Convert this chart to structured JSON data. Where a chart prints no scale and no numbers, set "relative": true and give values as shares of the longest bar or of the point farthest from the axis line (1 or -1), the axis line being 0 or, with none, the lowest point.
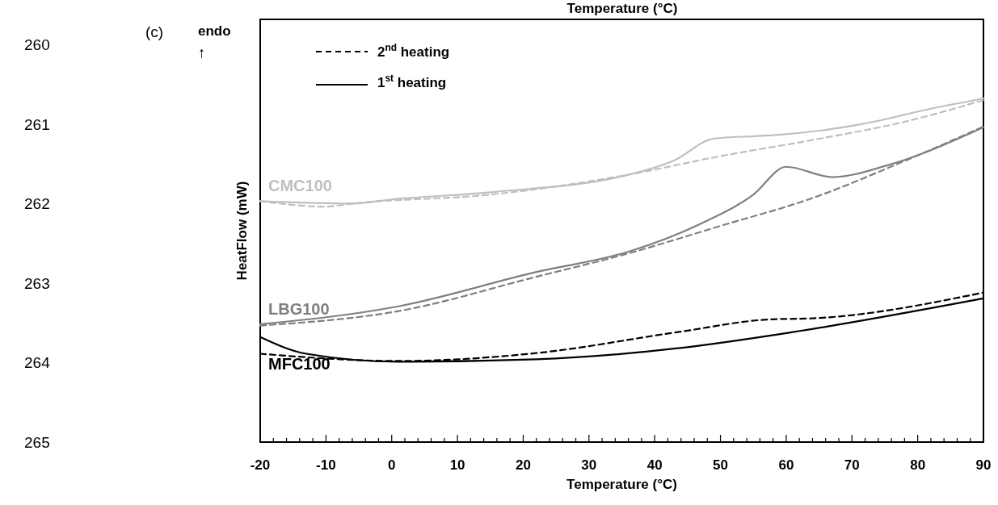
{
  "chart_data": {
    "type": "line",
    "relative": true,
    "xlabel": "Temperature (°C)",
    "ylabel": "HeatFlow (mW)",
    "xlim": [
      -20,
      90
    ],
    "xticks": [
      -20,
      {
        "value": -18,
        "label": null
      },
      {
        "value": -16,
        "label": null
      },
      {
        "value": -14,
        "label": null
      },
      {
        "value": -12,
        "label": null
      },
      -10,
      {
        "value": -8,
        "label": null
      },
      {
        "value": -6,
        "label": null
      },
      {
        "value": -4,
        "label": null
      },
      {
        "value": -2,
        "label": null
      },
      0,
      {
        "value": 2,
        "label": null
      },
      {
        "value": 4,
        "label": null
      },
      {
        "value": 6,
        "label": null
      },
      {
        "value": 8,
        "label": null
      },
      10,
      {
        "value": 12,
        "label": null
      },
      {
        "value": 14,
        "label": null
      },
      {
        "value": 16,
        "label": null
      },
      {
        "value": 18,
        "label": null
      },
      20,
      {
        "value": 22,
        "label": null
      },
      {
        "value": 24,
        "label": null
      },
      {
        "value": 26,
        "label": null
      },
      {
        "value": 28,
        "label": null
      },
      30,
      {
        "value": 32,
        "label": null
      },
      {
        "value": 34,
        "label": null
      },
      {
        "value": 36,
        "label": null
      },
      {
        "value": 38,
        "label": null
      },
      40,
      {
        "value": 42,
        "label": null
      },
      {
        "value": 44,
        "label": null
      },
      {
        "value": 46,
        "label": null
      },
      {
        "value": 48,
        "label": null
      },
      50,
      {
        "value": 52,
        "label": null
      },
      {
        "value": 54,
        "label": null
      },
      {
        "value": 56,
        "label": null
      },
      {
        "value": 58,
        "label": null
      },
      60,
      {
        "value": 62,
        "label": null
      },
      {
        "value": 64,
        "label": null
      },
      {
        "value": 66,
        "label": null
      },
      {
        "value": 68,
        "label": null
      },
      70,
      {
        "value": 72,
        "label": null
      },
      {
        "value": 74,
        "label": null
      },
      {
        "value": 76,
        "label": null
      },
      {
        "value": 78,
        "label": null
      },
      80,
      {
        "value": 82,
        "label": null
      },
      {
        "value": 84,
        "label": null
      },
      {
        "value": 86,
        "label": null
      },
      {
        "value": 88,
        "label": null
      },
      90
    ],
    "grid": false,
    "series": [
      {
        "name": "CMC100",
        "color": "#bfbfbf",
        "line_style": "solid",
        "x": [
          -20,
          -6,
          0,
          15,
          36,
          43,
          49,
          55,
          58,
          71.5,
          82,
          90
        ],
        "values": [
          0.701,
          0.694,
          0.706,
          0.727,
          0.778,
          0.82,
          0.883,
          0.89,
          0.893,
          0.925,
          0.97,
          1
        ]
      },
      {
        "color": "#bfbfbf",
        "line_style": "dashed",
        "x": [
          -20,
          -10,
          -6,
          15,
          36,
          50,
          64,
          78,
          90
        ],
        "values": [
          0.701,
          0.685,
          0.694,
          0.72,
          0.778,
          0.832,
          0.879,
          0.932,
          0.995
        ]
      },
      {
        "name": "LBG100",
        "color": "#808080",
        "line_style": "solid",
        "x": [
          -20,
          1,
          22,
          36,
          46.5,
          55,
          60,
          67,
          75.5,
          90
        ],
        "values": [
          0.343,
          0.395,
          0.495,
          0.554,
          0.631,
          0.72,
          0.801,
          0.771,
          0.806,
          0.916
        ]
      },
      {
        "color": "#808080",
        "line_style": "dashed",
        "x": [
          -20,
          1,
          22,
          36,
          50,
          64,
          78,
          90
        ],
        "values": [
          0.339,
          0.381,
          0.481,
          0.549,
          0.629,
          0.71,
          0.818,
          0.918
        ]
      },
      {
        "name": "MFC100",
        "color": "#000000",
        "line_style": "solid",
        "x": [
          -20,
          -13,
          1,
          22,
          43.5,
          61,
          90
        ],
        "values": [
          0.306,
          0.257,
          0.234,
          0.241,
          0.273,
          0.32,
          0.418
        ]
      },
      {
        "color": "#000000",
        "line_style": "dashed",
        "x": [
          -20,
          1,
          22,
          43.5,
          57.5,
          64,
          90
        ],
        "values": [
          0.257,
          0.236,
          0.259,
          0.32,
          0.357,
          0.36,
          0.435
        ]
      }
    ],
    "annotations": [
      "Temperature (°C)",
      "(c)",
      "endo",
      "↑",
      "2$^{nd}$ heating",
      "1$^{st}$ heating",
      "260",
      "261",
      "262",
      "263",
      "264",
      "265"
    ]
  }
}
